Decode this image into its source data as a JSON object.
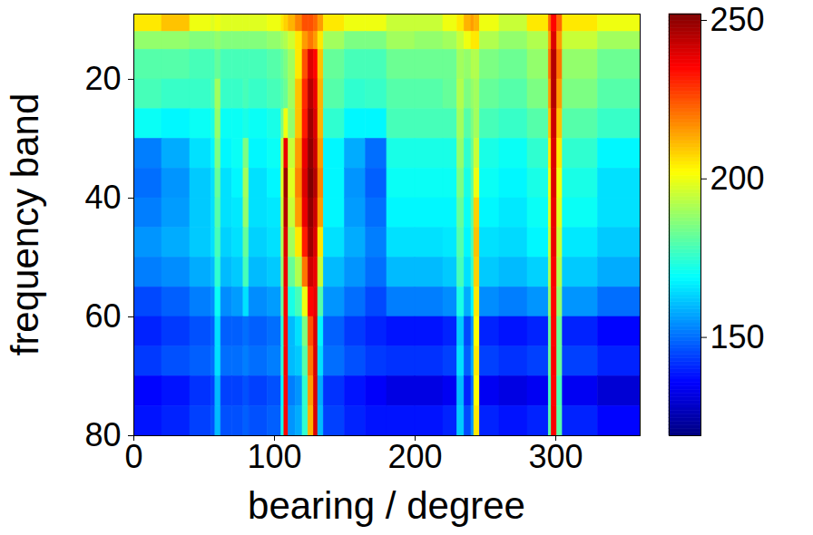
{
  "chart_data": {
    "type": "heatmap",
    "xlabel": "bearing / degree",
    "ylabel": "frequency band",
    "xlim": [
      0,
      360
    ],
    "ylim": [
      9,
      80
    ],
    "xticks": [
      0,
      100,
      200,
      300
    ],
    "yticks": [
      20,
      40,
      60,
      80
    ],
    "colorbar_range": [
      119,
      252
    ],
    "colorbar_ticks": [
      150,
      200,
      250
    ],
    "x_edges": [
      0,
      20,
      40,
      55,
      58,
      62,
      70,
      78,
      82,
      95,
      105,
      107,
      110,
      115,
      120,
      124,
      128,
      131,
      135,
      150,
      165,
      180,
      200,
      220,
      230,
      235,
      240,
      242,
      246,
      260,
      280,
      295,
      297,
      301,
      305,
      330,
      360
    ],
    "y_edges": [
      9,
      12,
      15,
      20,
      25,
      30,
      35,
      40,
      45,
      50,
      55,
      60,
      65,
      70,
      75,
      80
    ],
    "values": [
      [
        205,
        210,
        200,
        198,
        200,
        198,
        198,
        198,
        198,
        200,
        205,
        208,
        212,
        218,
        225,
        225,
        222,
        215,
        205,
        200,
        200,
        195,
        195,
        200,
        205,
        212,
        215,
        212,
        200,
        195,
        205,
        222,
        235,
        222,
        205,
        200
      ],
      [
        188,
        188,
        186,
        186,
        188,
        186,
        186,
        186,
        186,
        188,
        190,
        192,
        196,
        205,
        215,
        220,
        215,
        205,
        190,
        185,
        185,
        190,
        188,
        190,
        195,
        200,
        205,
        205,
        192,
        188,
        192,
        215,
        240,
        215,
        195,
        190
      ],
      [
        180,
        180,
        178,
        178,
        182,
        178,
        178,
        178,
        178,
        180,
        182,
        185,
        190,
        205,
        225,
        240,
        235,
        210,
        182,
        178,
        178,
        183,
        183,
        183,
        190,
        188,
        192,
        192,
        185,
        183,
        188,
        220,
        245,
        220,
        188,
        183
      ],
      [
        178,
        176,
        176,
        178,
        190,
        176,
        176,
        178,
        176,
        178,
        180,
        183,
        190,
        210,
        230,
        245,
        238,
        212,
        180,
        175,
        176,
        180,
        180,
        182,
        192,
        185,
        188,
        190,
        182,
        180,
        185,
        215,
        245,
        215,
        185,
        180
      ],
      [
        170,
        168,
        170,
        172,
        188,
        170,
        170,
        172,
        170,
        172,
        185,
        200,
        188,
        210,
        232,
        248,
        240,
        212,
        175,
        168,
        168,
        178,
        178,
        178,
        190,
        180,
        185,
        190,
        178,
        176,
        180,
        210,
        242,
        210,
        180,
        176
      ],
      [
        152,
        158,
        165,
        168,
        185,
        168,
        170,
        185,
        168,
        170,
        195,
        238,
        195,
        215,
        238,
        250,
        242,
        215,
        168,
        158,
        150,
        172,
        172,
        172,
        188,
        175,
        182,
        195,
        172,
        170,
        175,
        205,
        240,
        205,
        175,
        168
      ],
      [
        150,
        155,
        162,
        165,
        182,
        165,
        168,
        190,
        165,
        168,
        198,
        248,
        198,
        218,
        240,
        252,
        245,
        218,
        168,
        155,
        148,
        170,
        170,
        170,
        185,
        172,
        180,
        200,
        170,
        168,
        172,
        200,
        240,
        200,
        172,
        165
      ],
      [
        152,
        156,
        162,
        165,
        180,
        165,
        166,
        188,
        165,
        166,
        195,
        245,
        195,
        215,
        238,
        250,
        242,
        215,
        168,
        156,
        150,
        168,
        168,
        168,
        182,
        170,
        180,
        208,
        168,
        166,
        170,
        198,
        238,
        198,
        170,
        165
      ],
      [
        155,
        158,
        162,
        165,
        178,
        163,
        165,
        182,
        163,
        165,
        192,
        240,
        190,
        205,
        232,
        248,
        240,
        205,
        165,
        158,
        152,
        165,
        165,
        166,
        180,
        168,
        178,
        210,
        165,
        164,
        168,
        195,
        238,
        195,
        166,
        162
      ],
      [
        152,
        154,
        158,
        160,
        175,
        160,
        162,
        178,
        160,
        162,
        188,
        238,
        182,
        192,
        220,
        242,
        238,
        195,
        160,
        155,
        150,
        160,
        160,
        162,
        178,
        165,
        175,
        208,
        162,
        160,
        163,
        192,
        236,
        192,
        162,
        158
      ],
      [
        145,
        148,
        152,
        154,
        170,
        154,
        156,
        165,
        154,
        156,
        182,
        236,
        172,
        178,
        200,
        235,
        238,
        180,
        155,
        150,
        145,
        152,
        152,
        154,
        172,
        158,
        168,
        205,
        154,
        152,
        155,
        188,
        235,
        188,
        155,
        150
      ],
      [
        140,
        143,
        146,
        148,
        165,
        148,
        148,
        150,
        148,
        150,
        175,
        235,
        160,
        165,
        185,
        225,
        240,
        168,
        148,
        143,
        140,
        138,
        138,
        140,
        162,
        145,
        155,
        202,
        140,
        138,
        140,
        182,
        235,
        182,
        140,
        136
      ],
      [
        143,
        146,
        148,
        150,
        165,
        150,
        150,
        152,
        150,
        152,
        175,
        236,
        160,
        162,
        180,
        220,
        240,
        165,
        150,
        146,
        143,
        142,
        142,
        144,
        165,
        148,
        158,
        205,
        144,
        142,
        144,
        182,
        236,
        182,
        144,
        140
      ],
      [
        136,
        138,
        142,
        144,
        160,
        144,
        144,
        146,
        144,
        146,
        170,
        235,
        152,
        155,
        175,
        215,
        240,
        158,
        142,
        138,
        135,
        132,
        132,
        134,
        160,
        140,
        150,
        202,
        134,
        132,
        134,
        178,
        235,
        178,
        134,
        130
      ],
      [
        138,
        140,
        144,
        146,
        160,
        146,
        146,
        148,
        146,
        148,
        172,
        235,
        155,
        158,
        175,
        212,
        240,
        160,
        144,
        140,
        138,
        138,
        138,
        140,
        162,
        145,
        155,
        205,
        140,
        138,
        140,
        180,
        236,
        180,
        140,
        136
      ]
    ]
  }
}
